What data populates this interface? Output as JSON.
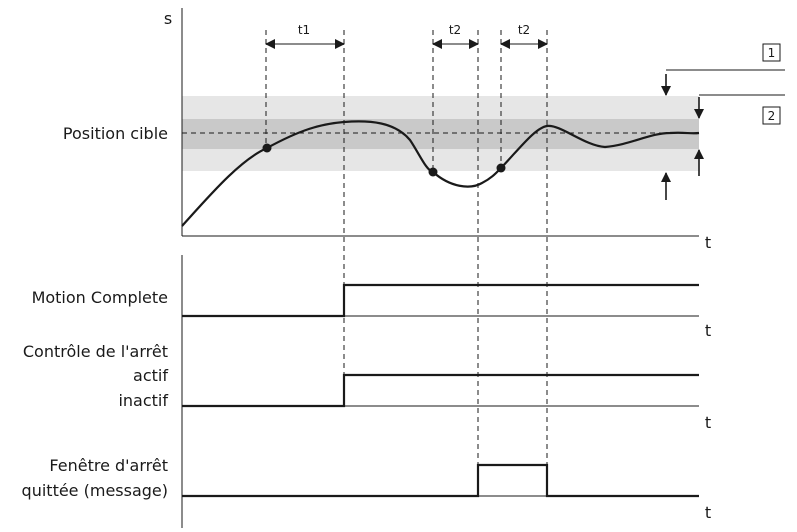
{
  "axes": {
    "s_label": "s",
    "t_label": "t"
  },
  "labels": {
    "position_cible": "Position cible",
    "motion_complete": "Motion Complete",
    "controle_arret": "Contrôle de l'arrêt",
    "actif": "actif",
    "inactif": "inactif",
    "fenetre_line1": "Fenêtre d'arrêt",
    "fenetre_line2": "quittée (message)"
  },
  "intervals": {
    "t1": "t1",
    "t2_first": "t2",
    "t2_second": "t2"
  },
  "callouts": {
    "one": "1",
    "two": "2"
  },
  "colors": {
    "outer_band": "#e6e6e6",
    "inner_band": "#c9c9c9",
    "ink": "#1a1a1a"
  }
}
